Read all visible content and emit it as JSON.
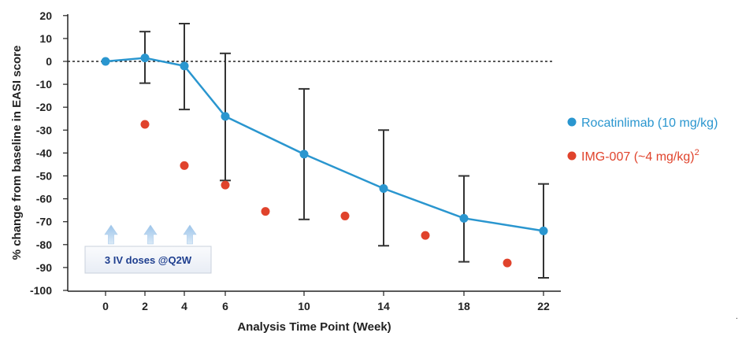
{
  "chart_data": {
    "type": "line",
    "title": "",
    "xlabel": "Analysis Time Point (Week)",
    "ylabel": "% change from baseline in EASI score",
    "x_ticks": [
      0,
      2,
      4,
      6,
      10,
      14,
      18,
      22
    ],
    "x_tick_labels": [
      "0",
      "2",
      "4",
      "6",
      "10",
      "14",
      "18",
      "22"
    ],
    "ylim": [
      -100,
      20
    ],
    "y_ticks": [
      20,
      10,
      0,
      -10,
      -20,
      -30,
      -40,
      -50,
      -60,
      -70,
      -80,
      -90,
      -100
    ],
    "y_tick_labels": [
      "20",
      "10",
      "0",
      "-10",
      "-20",
      "-30",
      "-40",
      "-50",
      "-60",
      "-70",
      "-80",
      "-90",
      "-100"
    ],
    "baseline_y": 0,
    "series": [
      {
        "name": "Rocatinlimab (10 mg/kg)",
        "color": "#2a96cf",
        "style": "line-markers",
        "points": [
          {
            "x": 0,
            "y": 0
          },
          {
            "x": 2,
            "y": 1.5,
            "lo": -9.5,
            "hi": 13
          },
          {
            "x": 4,
            "y": -2,
            "lo": -21,
            "hi": 16.5
          },
          {
            "x": 6,
            "y": -24,
            "lo": -52,
            "hi": 3.5
          },
          {
            "x": 10,
            "y": -40.5,
            "lo": -69,
            "hi": -12
          },
          {
            "x": 14,
            "y": -55.5,
            "lo": -80.5,
            "hi": -30
          },
          {
            "x": 18,
            "y": -68.5,
            "lo": -87.5,
            "hi": -50
          },
          {
            "x": 22,
            "y": -74,
            "lo": -94.5,
            "hi": -53.5
          }
        ]
      },
      {
        "name": "IMG-007 (~4 mg/kg)",
        "name_superscript": "2",
        "color": "#e0432c",
        "style": "markers",
        "points": [
          {
            "x": 2,
            "y": -27.5
          },
          {
            "x": 4,
            "y": -45.5
          },
          {
            "x": 6,
            "y": -54
          },
          {
            "x": 8,
            "y": -65.5
          },
          {
            "x": 12,
            "y": -67.5
          },
          {
            "x": 16,
            "y": -76
          },
          {
            "x": 20,
            "y": -88
          }
        ]
      }
    ],
    "dose_weeks": [
      0,
      2,
      4
    ],
    "annotations": [
      {
        "text": "3 IV doses @Q2W"
      }
    ]
  }
}
